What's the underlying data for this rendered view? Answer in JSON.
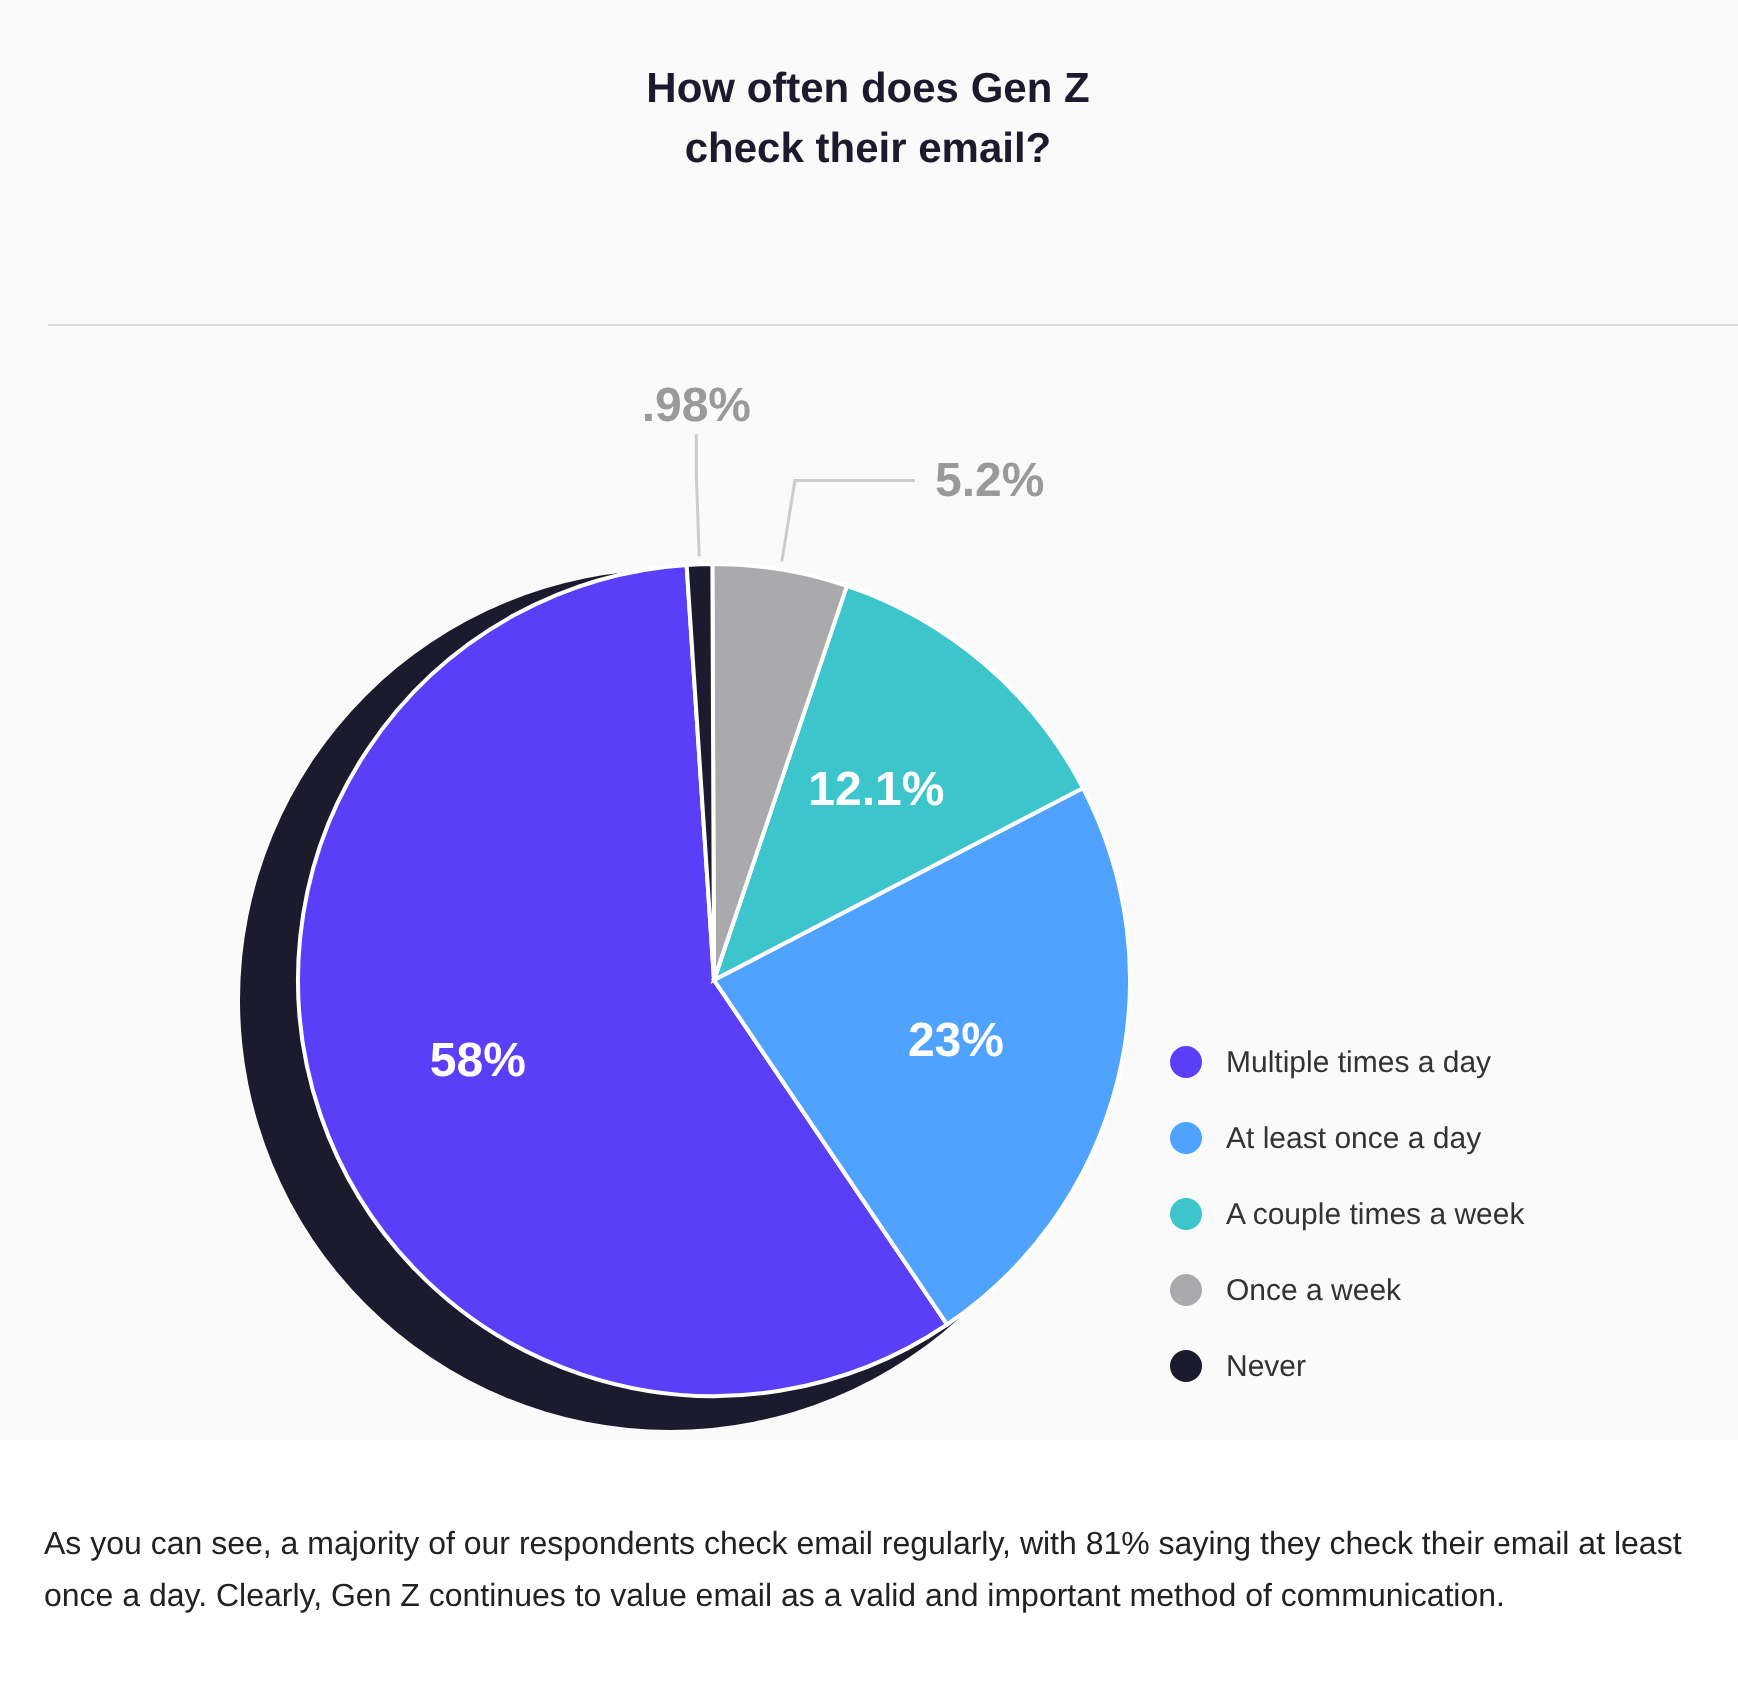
{
  "chart_data": {
    "type": "pie",
    "title": "How often does Gen Z check their email?",
    "categories": [
      "Multiple times a day",
      "At least once a day",
      "A couple times a week",
      "Once a week",
      "Never"
    ],
    "values": [
      58,
      23,
      12.1,
      5.2,
      0.98
    ],
    "value_labels": [
      "58%",
      "23%",
      "12.1%",
      "5.2%",
      ".98%"
    ],
    "colors": [
      "#5b3ff8",
      "#4fa3ff",
      "#3cc6cc",
      "#aaaaad",
      "#1c1b2e"
    ],
    "legend": "right",
    "annotations": [
      "As you can see, a majority of our respondents check email regularly, with 81% saying they check their email at least once a day. Clearly, Gen Z continues to value email as a valid and important method of communication."
    ]
  }
}
